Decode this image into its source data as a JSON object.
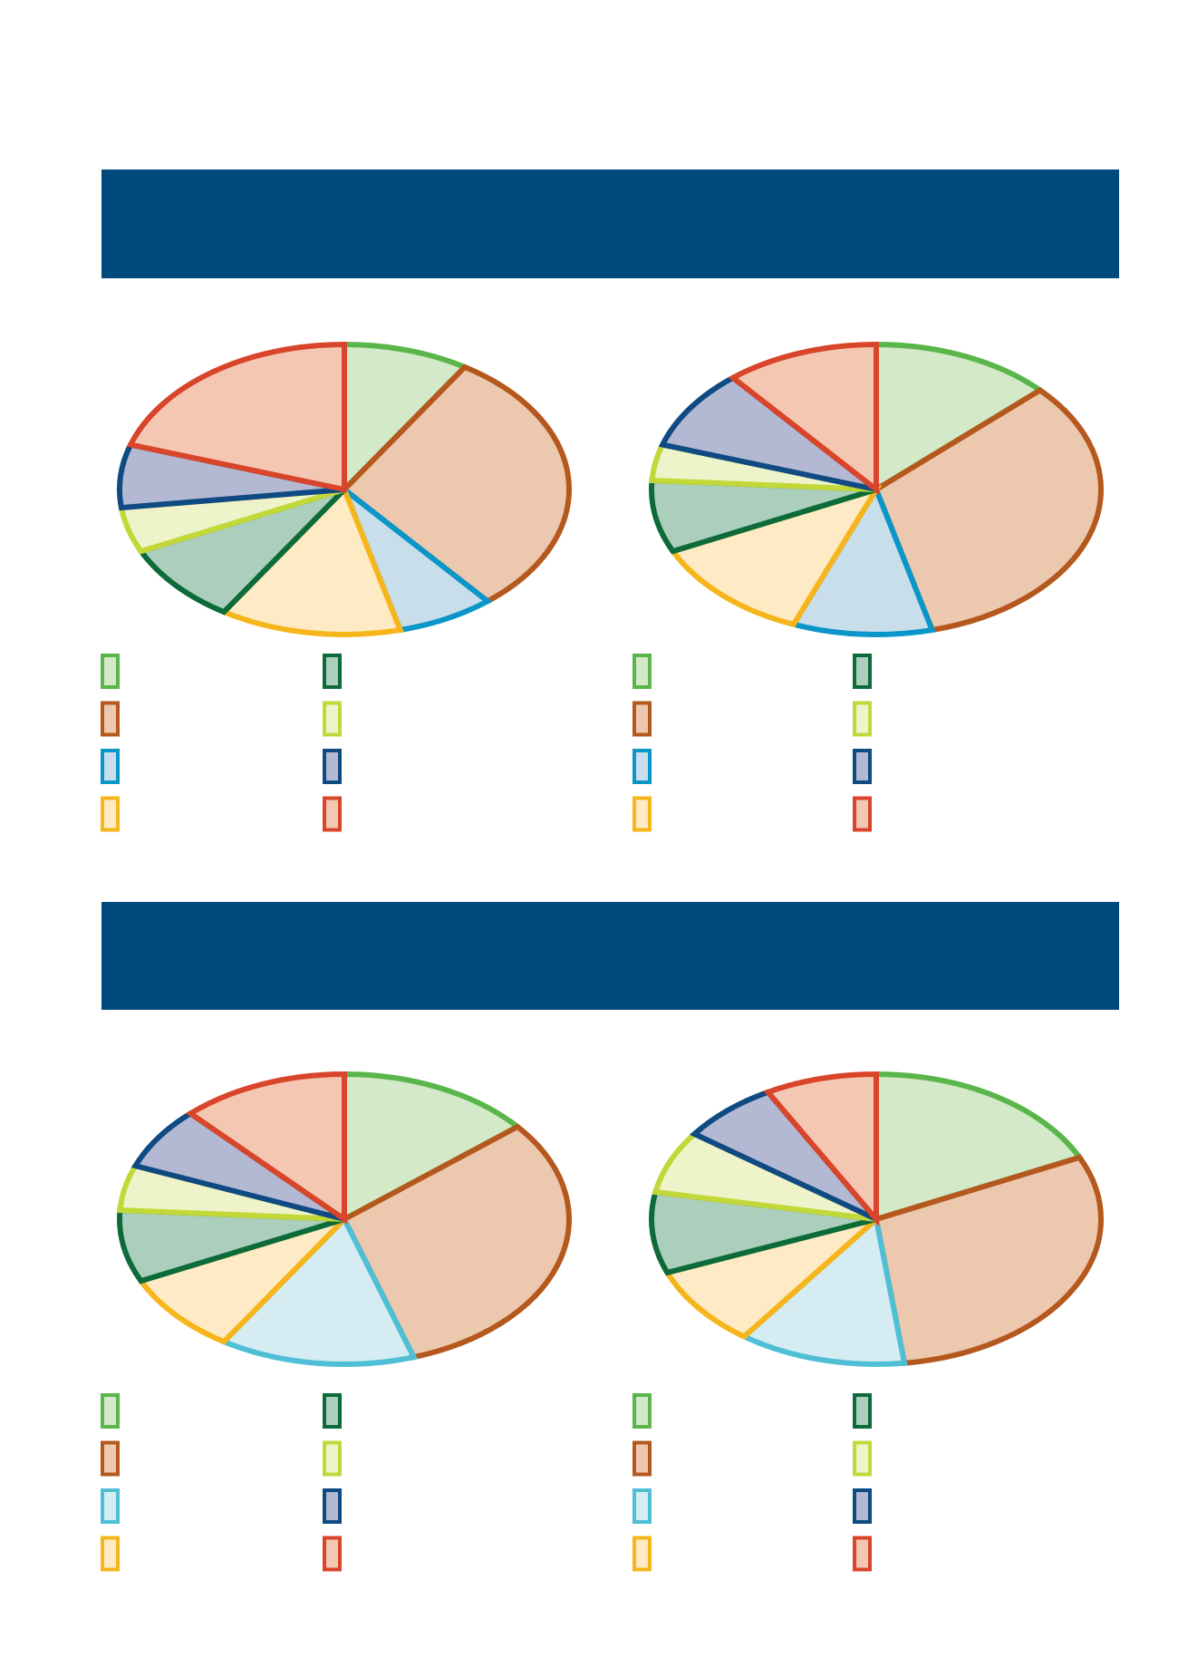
{
  "chart_data": [
    {
      "type": "pie",
      "values": [
        9,
        30,
        7,
        13,
        9,
        5,
        7,
        20
      ],
      "colors": [
        "#5ab54a",
        "#b5581e",
        "#0a96c8",
        "#f6b61b",
        "#0d6b3a",
        "#c2d839",
        "#0f4a82",
        "#d9452a"
      ],
      "fills": [
        "#d3e9c8",
        "#ecc9ae",
        "#c9deeb",
        "#feeac4",
        "#accfbd",
        "#eef3c9",
        "#b3b9d3",
        "#f4c7b2"
      ]
    },
    {
      "type": "pie",
      "values": [
        13,
        33,
        10,
        12,
        8,
        4,
        9,
        11
      ],
      "colors": [
        "#5ab54a",
        "#b5581e",
        "#0a96c8",
        "#f6b61b",
        "#0d6b3a",
        "#c2d839",
        "#0f4a82",
        "#d9452a"
      ],
      "fills": [
        "#d3e9c8",
        "#ecc9ae",
        "#c9deeb",
        "#feeac4",
        "#accfbd",
        "#eef3c9",
        "#b3b9d3",
        "#f4c7b2"
      ]
    },
    {
      "type": "pie",
      "values": [
        14,
        31,
        14,
        9,
        8,
        5,
        7,
        12
      ],
      "colors": [
        "#5ab54a",
        "#b5581e",
        "#4fbfd6",
        "#f6b61b",
        "#0d6b3a",
        "#c2d839",
        "#0f4a82",
        "#d9452a"
      ],
      "fills": [
        "#d3e9c8",
        "#ecc9ae",
        "#d4ecf2",
        "#feeac4",
        "#accfbd",
        "#eef3c9",
        "#b3b9d3",
        "#f4c7b2"
      ]
    },
    {
      "type": "pie",
      "values": [
        18,
        30,
        12,
        9,
        9,
        7,
        7,
        8
      ],
      "colors": [
        "#5ab54a",
        "#b5581e",
        "#4fbfd6",
        "#f6b61b",
        "#0d6b3a",
        "#c2d839",
        "#0f4a82",
        "#d9452a"
      ],
      "fills": [
        "#d3e9c8",
        "#ecc9ae",
        "#d4ecf2",
        "#feeac4",
        "#accfbd",
        "#eef3c9",
        "#b3b9d3",
        "#f4c7b2"
      ]
    }
  ]
}
